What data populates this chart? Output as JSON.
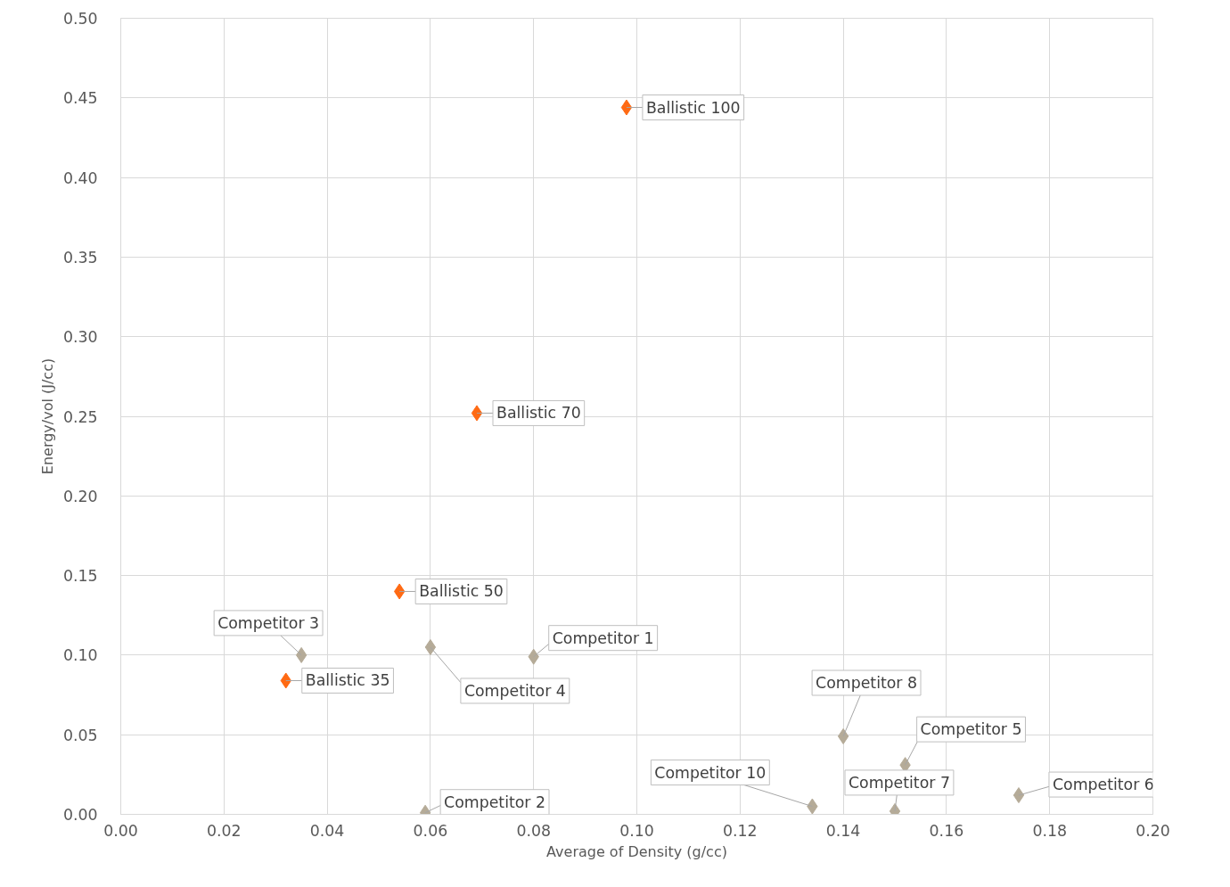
{
  "chart_data": {
    "type": "scatter",
    "xlabel": "Average of Density (g/cc)",
    "ylabel": "Energy/vol (J/cc)",
    "xlim": [
      0,
      0.2
    ],
    "xticks": [
      {
        "value": 0,
        "label": "0.00"
      },
      {
        "value": 0.02,
        "label": "0.02"
      },
      {
        "value": 0.04,
        "label": "0.04"
      },
      {
        "value": 0.06,
        "label": "0.06"
      },
      {
        "value": 0.08,
        "label": "0.08"
      },
      {
        "value": 0.1,
        "label": "0.10"
      },
      {
        "value": 0.12,
        "label": "0.12"
      },
      {
        "value": 0.14,
        "label": "0.14"
      },
      {
        "value": 0.16,
        "label": "0.16"
      },
      {
        "value": 0.18,
        "label": "0.18"
      },
      {
        "value": 0.2,
        "label": "0.20"
      }
    ],
    "ylim": [
      0,
      0.5
    ],
    "yticks": [
      {
        "value": 0,
        "label": "0.00"
      },
      {
        "value": 0.05,
        "label": "0.05"
      },
      {
        "value": 0.1,
        "label": "0.10"
      },
      {
        "value": 0.15,
        "label": "0.15"
      },
      {
        "value": 0.2,
        "label": "0.20"
      },
      {
        "value": 0.25,
        "label": "0.25"
      },
      {
        "value": 0.3,
        "label": "0.30"
      },
      {
        "value": 0.35,
        "label": "0.35"
      },
      {
        "value": 0.4,
        "label": "0.40"
      },
      {
        "value": 0.45,
        "label": "0.45"
      },
      {
        "value": 0.5,
        "label": "0.50"
      }
    ],
    "grid": true,
    "marker": "diamond",
    "series": [
      {
        "color": "#ff6a13",
        "x": [
          0.098,
          0.069,
          0.054,
          0.032
        ],
        "values": [
          0.444,
          0.252,
          0.14,
          0.084
        ]
      },
      {
        "color": "#b5ab98",
        "x": [
          0.035,
          0.06,
          0.08,
          0.059,
          0.14,
          0.152,
          0.134,
          0.15,
          0.174
        ],
        "values": [
          0.1,
          0.105,
          0.099,
          0.001,
          0.049,
          0.031,
          0.005,
          0.002,
          0.012
        ]
      }
    ],
    "annotations": [
      {
        "text": "Ballistic 100",
        "x": 0.098,
        "y": 0.444
      },
      {
        "text": "Ballistic 70",
        "x": 0.069,
        "y": 0.252
      },
      {
        "text": "Ballistic 50",
        "x": 0.054,
        "y": 0.14
      },
      {
        "text": "Ballistic 35",
        "x": 0.032,
        "y": 0.084
      },
      {
        "text": "Competitor 3",
        "x": 0.035,
        "y": 0.1
      },
      {
        "text": "Competitor 4",
        "x": 0.06,
        "y": 0.105
      },
      {
        "text": "Competitor 1",
        "x": 0.08,
        "y": 0.099
      },
      {
        "text": "Competitor 2",
        "x": 0.059,
        "y": 0.001
      },
      {
        "text": "Competitor 8",
        "x": 0.14,
        "y": 0.049
      },
      {
        "text": "Competitor 5",
        "x": 0.152,
        "y": 0.031
      },
      {
        "text": "Competitor 10",
        "x": 0.134,
        "y": 0.005
      },
      {
        "text": "Competitor 7",
        "x": 0.15,
        "y": 0.002
      },
      {
        "text": "Competitor 6",
        "x": 0.174,
        "y": 0.012
      }
    ]
  }
}
